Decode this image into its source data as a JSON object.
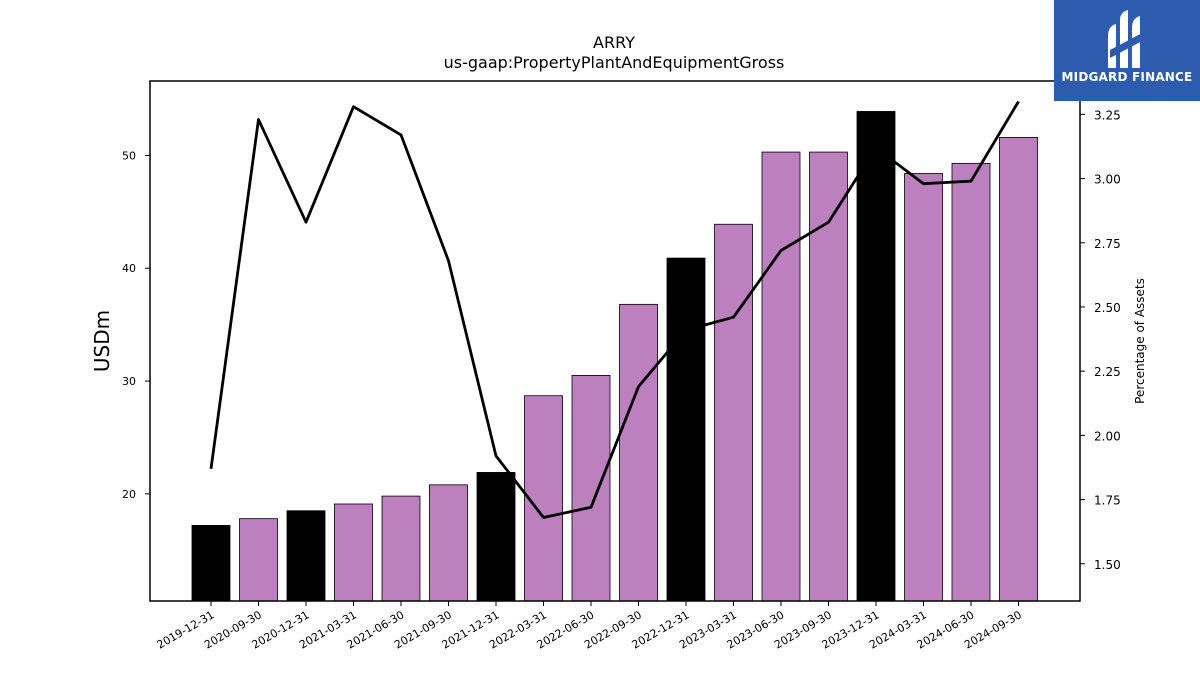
{
  "chart_data": {
    "type": "bar",
    "title": "ARRY",
    "subtitle": "us-gaap:PropertyPlantAndEquipmentGross",
    "ylabel": "USDm",
    "ylabel_right": "Percentage of Assets",
    "categories": [
      "2019-12-31",
      "2020-09-30",
      "2020-12-31",
      "2021-03-31",
      "2021-06-30",
      "2021-09-30",
      "2021-12-31",
      "2022-03-31",
      "2022-06-30",
      "2022-09-30",
      "2022-12-31",
      "2023-03-31",
      "2023-06-30",
      "2023-09-30",
      "2023-12-31",
      "2024-03-31",
      "2024-06-30",
      "2024-09-30"
    ],
    "series": [
      {
        "type": "bar",
        "axis": "left",
        "values": [
          17.2,
          17.8,
          18.5,
          19.1,
          19.8,
          20.8,
          21.9,
          28.7,
          30.5,
          36.8,
          40.9,
          43.9,
          50.3,
          50.3,
          53.9,
          48.4,
          49.3,
          51.6
        ],
        "annual_flags": [
          true,
          false,
          true,
          false,
          false,
          false,
          true,
          false,
          false,
          false,
          true,
          false,
          false,
          false,
          true,
          false,
          false,
          false
        ]
      },
      {
        "type": "line",
        "axis": "right",
        "values": [
          1.87,
          3.23,
          2.83,
          3.28,
          3.17,
          2.68,
          1.92,
          1.68,
          1.72,
          2.19,
          2.41,
          2.46,
          2.72,
          2.83,
          3.12,
          2.98,
          2.99,
          3.3
        ]
      }
    ],
    "ylim": [
      10.5,
      56.6
    ],
    "ylim_right": [
      1.355,
      3.38
    ],
    "yticks": [
      20,
      30,
      40,
      50
    ],
    "yticks_right": [
      "1.50",
      "1.75",
      "2.00",
      "2.25",
      "2.50",
      "2.75",
      "3.00",
      "3.25"
    ],
    "colors": {
      "quarter_bar": "#bb80bd",
      "annual_bar": "#000000",
      "line": "#000000"
    }
  },
  "logo": {
    "text": "MIDGARD FINANCE",
    "background": "#2d5bad"
  }
}
